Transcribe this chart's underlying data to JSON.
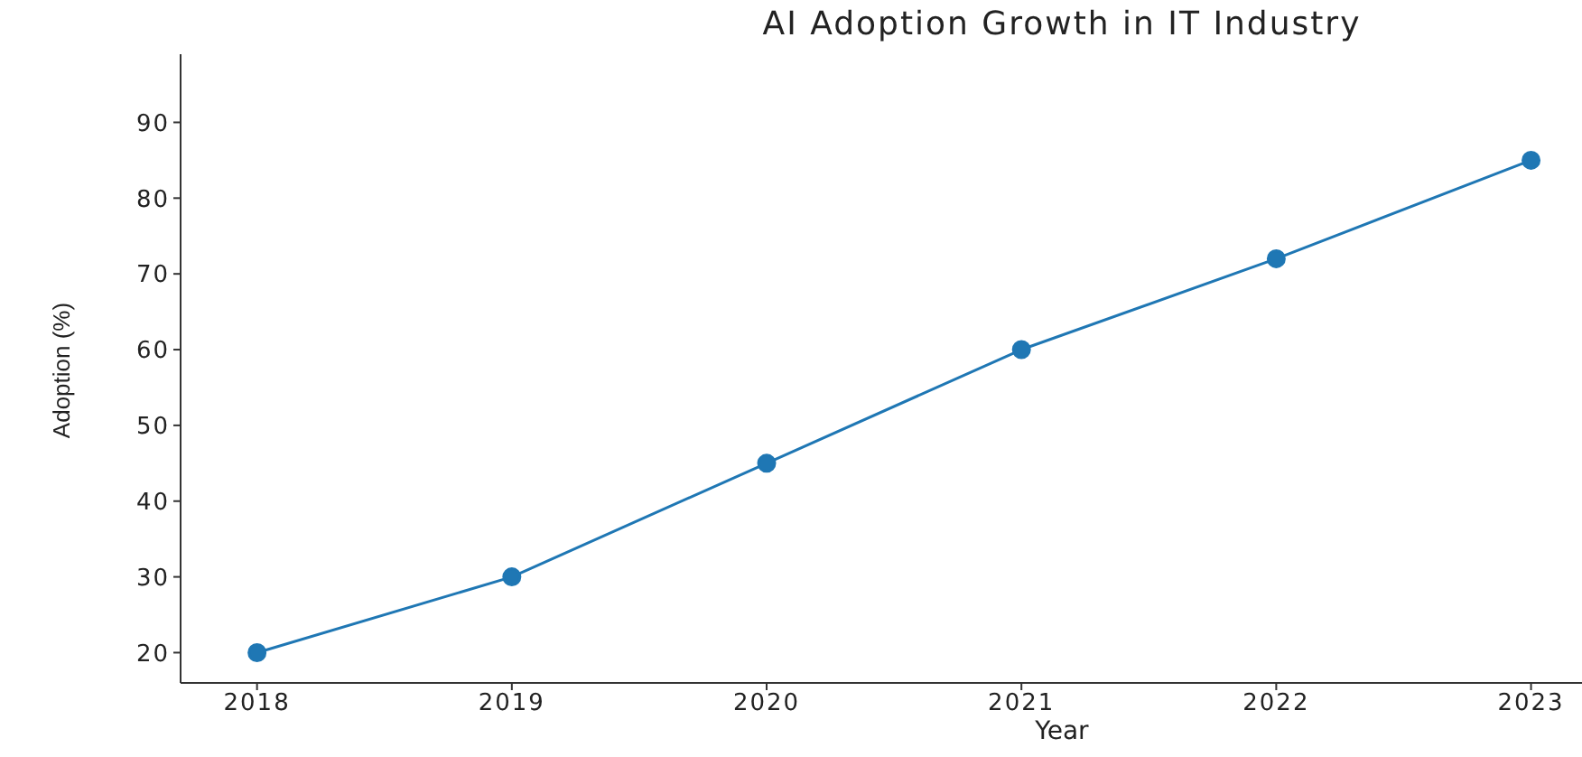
{
  "chart_data": {
    "type": "line",
    "title": "AI Adoption Growth in IT Industry",
    "xlabel": "Year",
    "ylabel": "Adoption (%)",
    "x": [
      2018,
      2019,
      2020,
      2021,
      2022,
      2023
    ],
    "series": [
      {
        "color": "#1f77b4",
        "values": [
          20,
          30,
          45,
          60,
          72,
          85
        ]
      }
    ],
    "xlim": [
      2017.7,
      2023.2
    ],
    "xticks": [
      2018,
      2019,
      2020,
      2021,
      2022,
      2023
    ],
    "ylim": [
      16,
      99
    ],
    "yticks": [
      20,
      30,
      40,
      50,
      60,
      70,
      80,
      90
    ],
    "grid": false,
    "legend": false,
    "marker": "circle",
    "line_style": "solid"
  }
}
